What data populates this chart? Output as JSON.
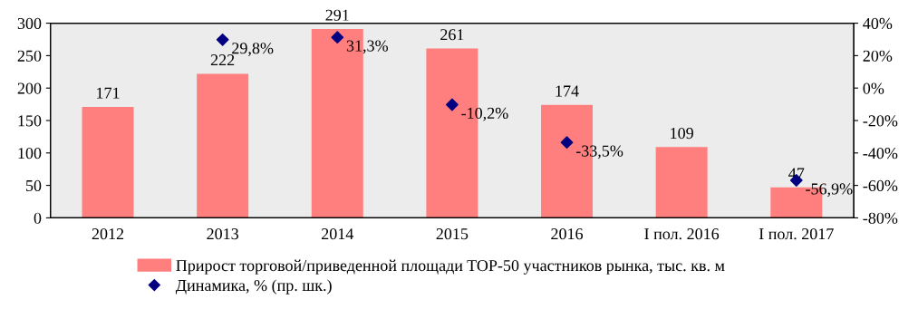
{
  "chart_data": {
    "type": "bar",
    "categories": [
      "2012",
      "2013",
      "2014",
      "2015",
      "2016",
      "I пол. 2016",
      "I пол. 2017"
    ],
    "series": [
      {
        "name": "Прирост торговой/приведенной площади TOP-50 участников рынка, тыс. кв. м",
        "color": "#ff7f7f",
        "values": [
          171,
          222,
          291,
          261,
          174,
          109,
          47
        ]
      },
      {
        "name": "Динамика, % (пр. шк.)",
        "type": "scatter",
        "axis": "y2",
        "color": "#000080",
        "marker": "diamond",
        "values": [
          null,
          29.8,
          31.3,
          -10.2,
          -33.5,
          null,
          -56.9
        ],
        "value_labels": [
          null,
          "29,8%",
          "31,3%",
          "-10,2%",
          "-33,5%",
          null,
          "-56,9%"
        ]
      }
    ],
    "data_labels": true,
    "ylim": [
      0,
      300
    ],
    "yticks": [
      0,
      50,
      100,
      150,
      200,
      250,
      300
    ],
    "y2lim": [
      -80,
      40
    ],
    "y2ticks": [
      {
        "value": -80,
        "label": "-80%"
      },
      {
        "value": -60,
        "label": "-60%"
      },
      {
        "value": -40,
        "label": "-40%"
      },
      {
        "value": -20,
        "label": "-20%"
      },
      {
        "value": 0,
        "label": "0%"
      },
      {
        "value": 20,
        "label": "20%"
      },
      {
        "value": 40,
        "label": "40%"
      }
    ],
    "grid": false,
    "legend": "bottom"
  }
}
